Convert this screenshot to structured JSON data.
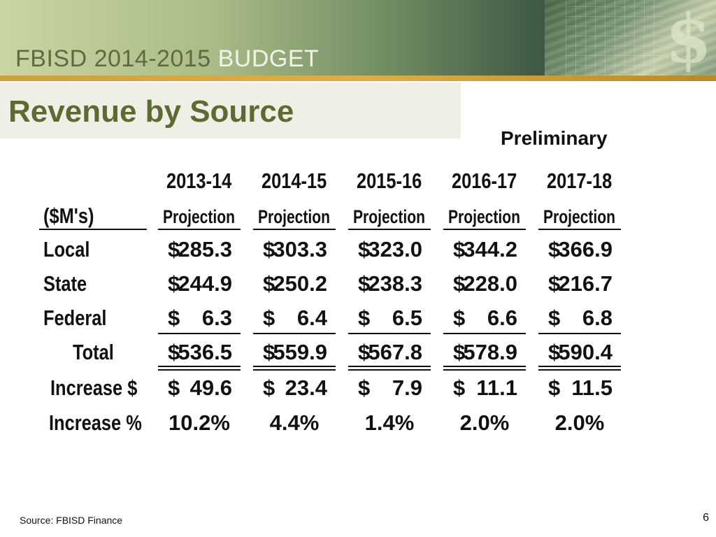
{
  "banner": {
    "part1": "FBISD 2014-2015 ",
    "part2": "BUDGET"
  },
  "slide": {
    "title": "Revenue by Source",
    "subtitle": "Preliminary"
  },
  "table": {
    "unit_label": "($M's)",
    "years": [
      "2013-14",
      "2014-15",
      "2015-16",
      "2016-17",
      "2017-18"
    ],
    "year_subheads": [
      "Projection",
      "Projection",
      "Projection",
      "Projection",
      "Projection"
    ],
    "rows": [
      {
        "label": "Local",
        "values": [
          "285.3",
          "303.3",
          "323.0",
          "344.2",
          "366.9"
        ]
      },
      {
        "label": "State",
        "values": [
          "244.9",
          "250.2",
          "238.3",
          "228.0",
          "216.7"
        ]
      },
      {
        "label": "Federal",
        "values": [
          "6.3",
          "6.4",
          "6.5",
          "6.6",
          "6.8"
        ]
      },
      {
        "label": "Total",
        "values": [
          "536.5",
          "559.9",
          "567.8",
          "578.9",
          "590.4"
        ]
      },
      {
        "label": "Increase $",
        "values": [
          "49.6",
          "23.4",
          "7.9",
          "11.1",
          "11.5"
        ]
      }
    ],
    "currency_symbol": "$",
    "increase_pct": {
      "label": "Increase %",
      "values": [
        "10.2%",
        "4.4%",
        "1.4%",
        "2.0%",
        "2.0%"
      ]
    }
  },
  "footer": {
    "source": "Source: FBISD Finance",
    "page": "6"
  },
  "icons": {
    "banner_graphic": "dollar-sign-icon"
  },
  "colors": {
    "title_green": "#5d6b33",
    "accent_gold": "#c9a23a"
  }
}
